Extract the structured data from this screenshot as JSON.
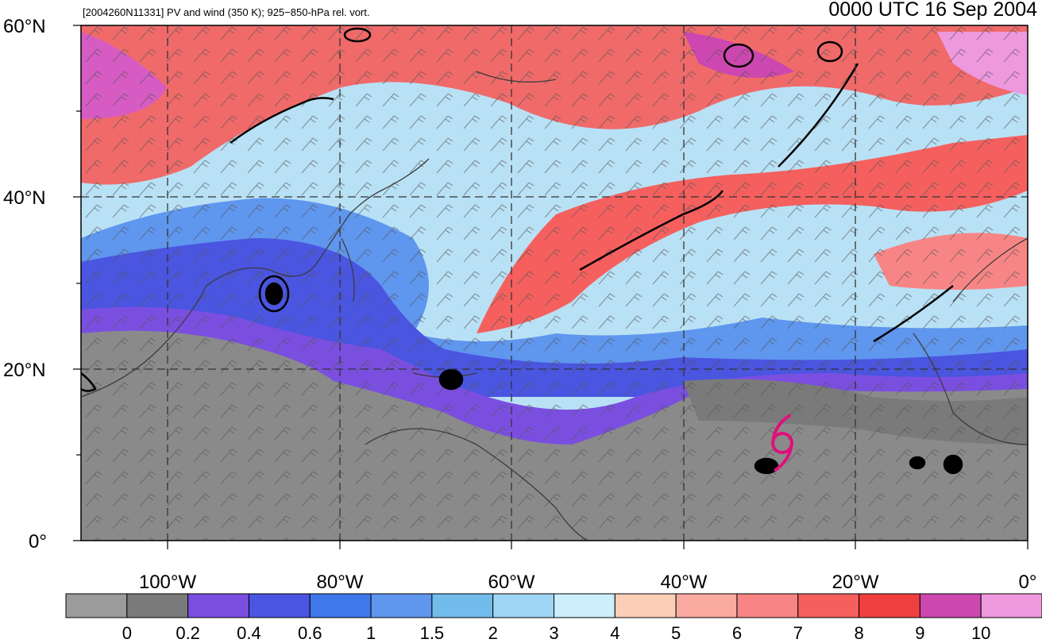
{
  "header": {
    "left_title": "[2004260N11331] PV and wind (350 K); 925−850-hPa rel. vort.",
    "right_title": "0000 UTC 16 Sep 2004"
  },
  "map": {
    "lat_labels": [
      "60°N",
      "40°N",
      "20°N",
      "0°"
    ],
    "lon_labels": [
      "100°W",
      "80°W",
      "60°W",
      "40°W",
      "20°W",
      "0°"
    ],
    "storm_symbol_color": "#e0107a"
  },
  "colorbar": {
    "tick_labels": [
      "0",
      "0.2",
      "0.4",
      "0.6",
      "1",
      "1.5",
      "2",
      "3",
      "4",
      "5",
      "6",
      "7",
      "8",
      "9",
      "10"
    ],
    "colors": [
      "#9b9b9b",
      "#7a7a7a",
      "#7a4fe0",
      "#4a55e0",
      "#3f78ea",
      "#5f96ee",
      "#72bcec",
      "#9fd6f5",
      "#cdeefb",
      "#fbcfb6",
      "#fbaaa0",
      "#f88585",
      "#f5605f",
      "#f03f3f",
      "#cc48b0",
      "#ee98de"
    ]
  }
}
